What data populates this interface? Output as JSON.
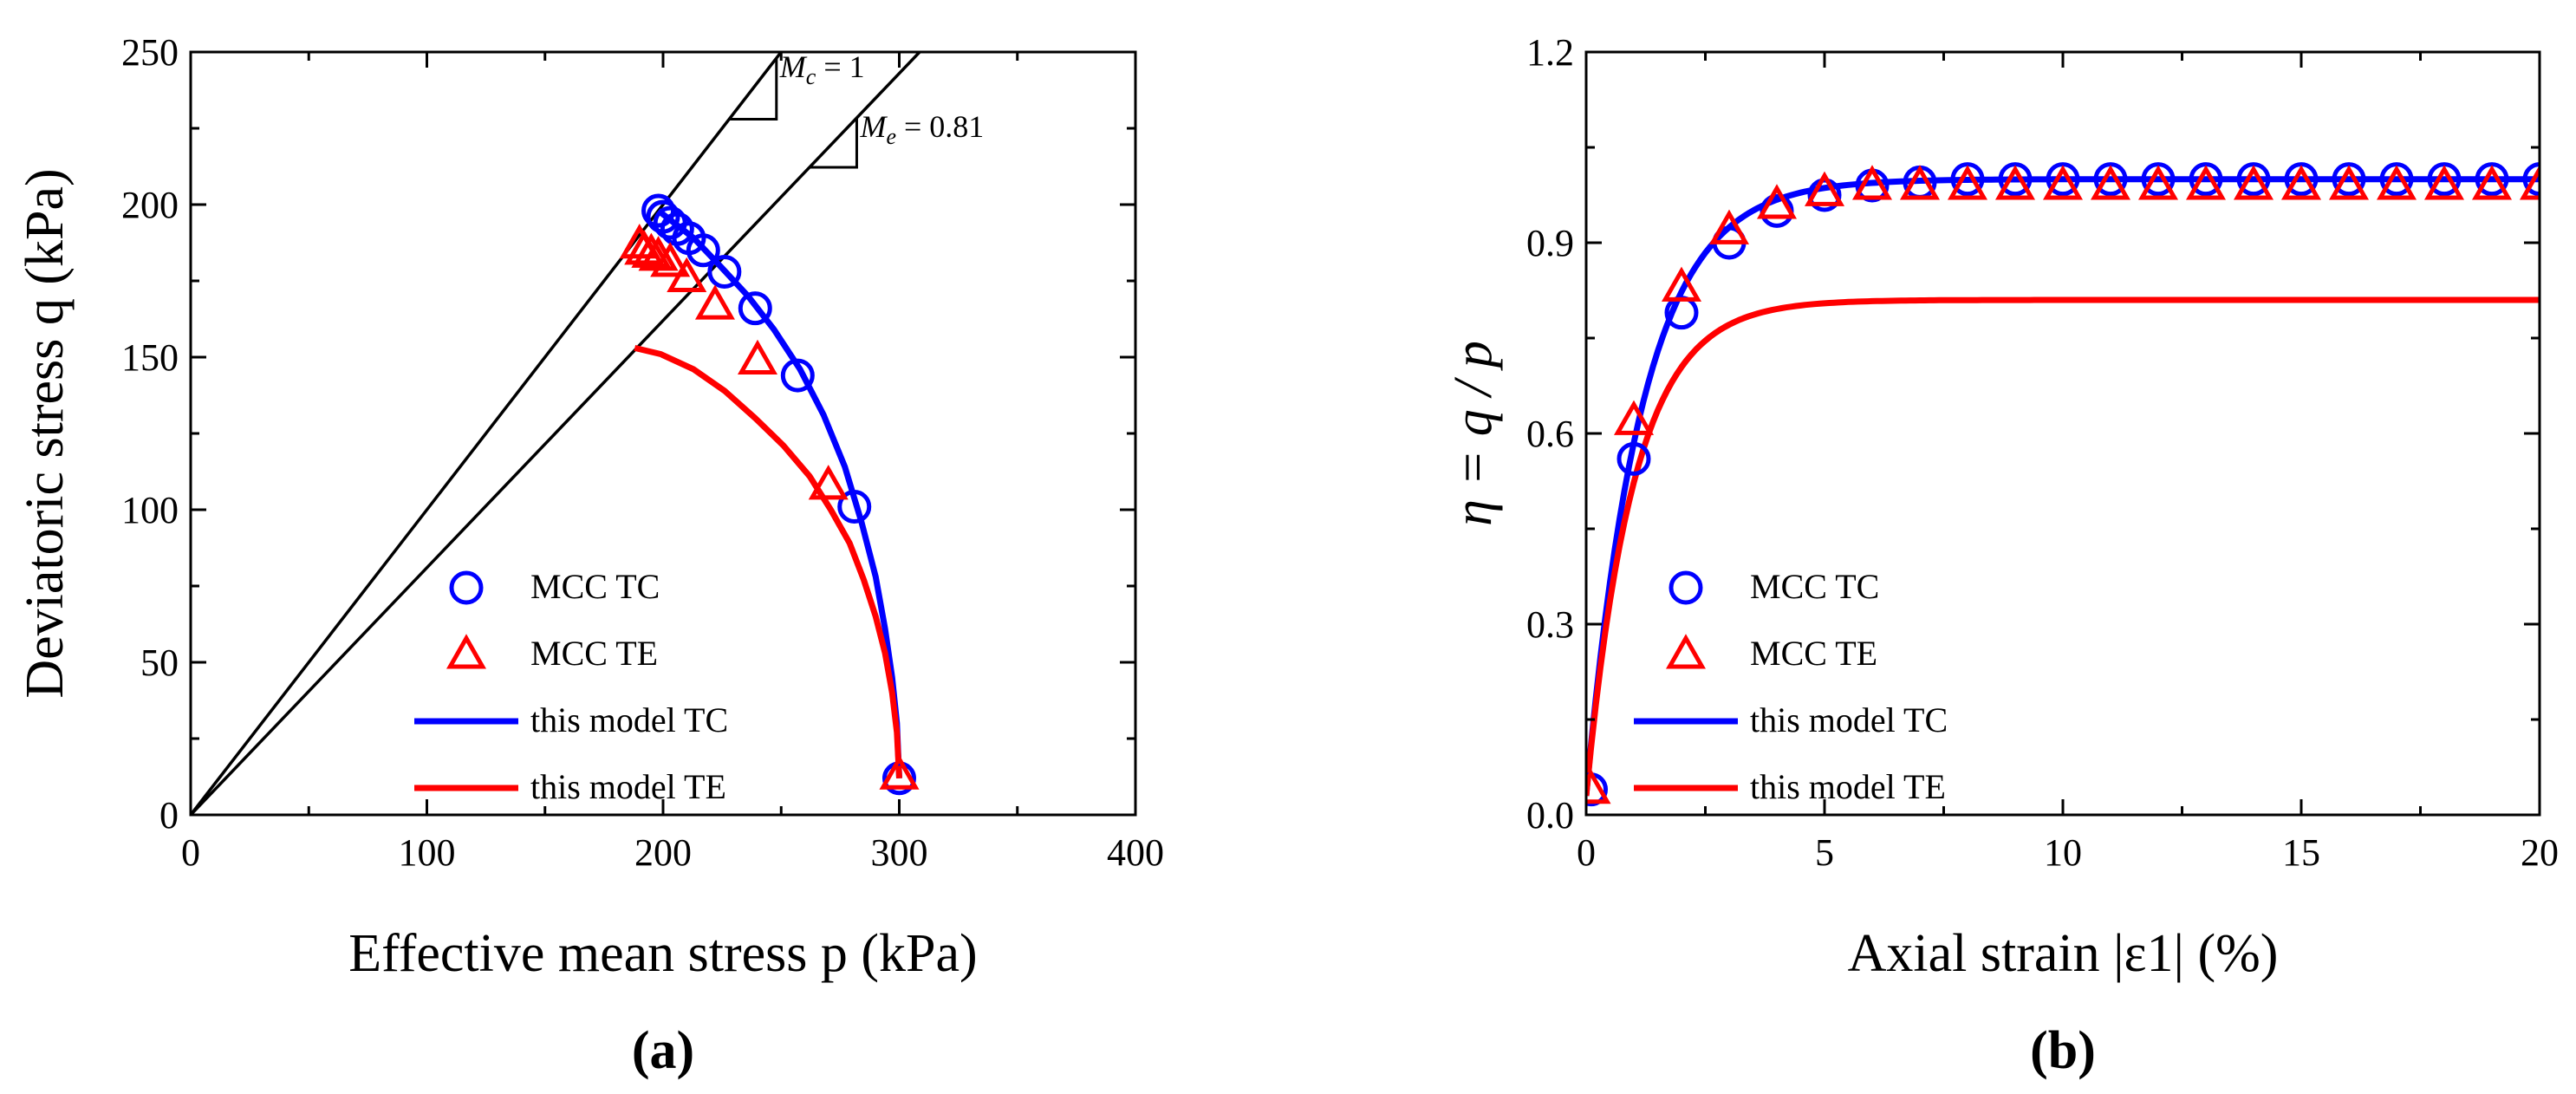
{
  "chart_data": [
    {
      "panel": "a",
      "panel_label": "(a)",
      "type": "line",
      "xlabel": "Effective mean stress p (kPa)",
      "ylabel": "Deviatoric stress q (kPa)",
      "xlim": [
        0,
        400
      ],
      "ylim": [
        0,
        250
      ],
      "xticks": [
        0,
        100,
        200,
        300,
        400
      ],
      "yticks": [
        0,
        50,
        100,
        150,
        200,
        250
      ],
      "grid": false,
      "legend_position": "bottom-center",
      "reference_lines": [
        {
          "name": "Mc",
          "slope": 1,
          "label_symbol": "M",
          "label_sub": "c",
          "label_value": " = 1"
        },
        {
          "name": "Me",
          "slope": 0.81,
          "label_symbol": "M",
          "label_sub": "e",
          "label_value": " = 0.81"
        }
      ],
      "series": [
        {
          "name": "MCC TC",
          "kind": "marker",
          "marker": "circle",
          "color": "#0000ff",
          "x": [
            300,
            281,
            257,
            239,
            226,
            217,
            211,
            206,
            203,
            200,
            198
          ],
          "y": [
            12,
            101,
            144,
            166,
            178,
            185,
            189,
            192,
            194,
            196,
            198
          ]
        },
        {
          "name": "MCC TE",
          "kind": "marker",
          "marker": "triangle",
          "color": "#ff0000",
          "x": [
            300,
            270,
            240,
            222,
            210,
            203,
            198,
            195,
            192,
            190
          ],
          "y": [
            13,
            108,
            149,
            167,
            176,
            181,
            183,
            184,
            185,
            187
          ]
        },
        {
          "name": "this model TC",
          "kind": "line",
          "color": "#0000ff",
          "x": [
            300,
            299,
            297,
            294,
            290,
            284,
            277,
            268,
            258,
            247,
            236,
            224,
            213,
            203,
            198
          ],
          "y": [
            12,
            30,
            45,
            61,
            78,
            96,
            114,
            131,
            146,
            159,
            170,
            180,
            189,
            195,
            198
          ]
        },
        {
          "name": "this model TE",
          "kind": "line",
          "color": "#ff0000",
          "x": [
            300,
            299,
            297,
            294,
            290,
            285,
            279,
            271,
            262,
            251,
            239,
            226,
            213,
            199,
            188
          ],
          "y": [
            12,
            27,
            40,
            53,
            65,
            77,
            89,
            100,
            111,
            121,
            130,
            139,
            146,
            151,
            153
          ]
        }
      ]
    },
    {
      "panel": "b",
      "panel_label": "(b)",
      "type": "line",
      "xlabel": "Axial strain |ε1| (%)",
      "ylabel": "η = q / p",
      "xlim": [
        0,
        20
      ],
      "ylim": [
        0,
        1.2
      ],
      "xticks": [
        0,
        5,
        10,
        15,
        20
      ],
      "yticks": [
        "0.0",
        "0.3",
        "0.6",
        "0.9",
        "1.2"
      ],
      "grid": false,
      "legend_position": "bottom-left",
      "series": [
        {
          "name": "MCC TC",
          "kind": "marker",
          "marker": "circle",
          "color": "#0000ff",
          "x": [
            0.1,
            1,
            2,
            3,
            4,
            5,
            6,
            7,
            8,
            9,
            10,
            11,
            12,
            13,
            14,
            15,
            16,
            17,
            18,
            19,
            20
          ],
          "y": [
            0.04,
            0.56,
            0.79,
            0.9,
            0.95,
            0.975,
            0.99,
            0.995,
            1.0,
            1.0,
            1.0,
            1.0,
            1.0,
            1.0,
            1.0,
            1.0,
            1.0,
            1.0,
            1.0,
            1.0,
            1.0
          ]
        },
        {
          "name": "MCC TE",
          "kind": "marker",
          "marker": "triangle",
          "color": "#ff0000",
          "x": [
            0.1,
            1,
            2,
            3,
            4,
            5,
            6,
            7,
            8,
            9,
            10,
            11,
            12,
            13,
            14,
            15,
            16,
            17,
            18,
            19,
            20
          ],
          "y": [
            0.04,
            0.62,
            0.83,
            0.92,
            0.96,
            0.98,
            0.99,
            0.99,
            0.99,
            0.99,
            0.99,
            0.99,
            0.99,
            0.99,
            0.99,
            0.99,
            0.99,
            0.99,
            0.99,
            0.99,
            0.99
          ]
        },
        {
          "name": "this model TC",
          "kind": "line",
          "color": "#0000ff",
          "curve": {
            "type": "exp_saturation",
            "y0": 0.03,
            "yinf": 1.0,
            "k": 0.85
          }
        },
        {
          "name": "this model TE",
          "kind": "line",
          "color": "#ff0000",
          "curve": {
            "type": "exp_saturation",
            "y0": 0.03,
            "yinf": 0.81,
            "k": 1.0
          }
        }
      ]
    }
  ]
}
